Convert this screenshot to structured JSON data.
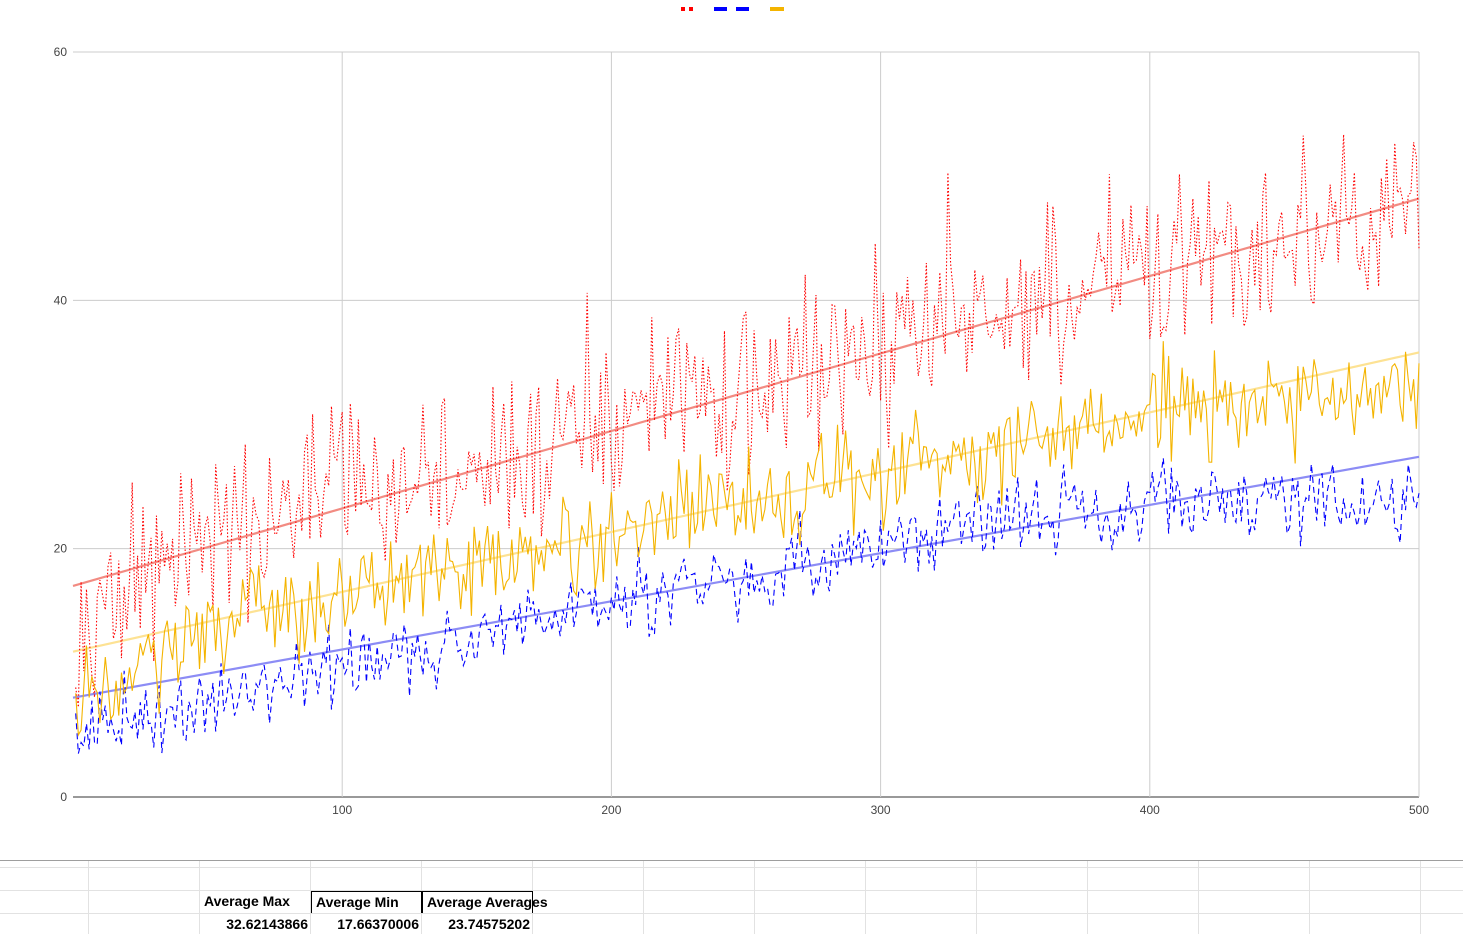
{
  "chart_data": {
    "type": "line",
    "legend_position": "top",
    "grid": true,
    "xlim": [
      0,
      500
    ],
    "ylim": [
      0,
      60
    ],
    "xticks": [
      "100",
      "200",
      "300",
      "400",
      "500"
    ],
    "yticks": [
      "0",
      "20",
      "40",
      "60"
    ],
    "n_points": 500,
    "series": [
      {
        "id": "max",
        "color": "#ff0000",
        "dash": "dotted",
        "approx_values": {
          "1": 15,
          "50": 20,
          "100": 24,
          "150": 27,
          "200": 30,
          "250": 33,
          "300": 36,
          "350": 39,
          "400": 42,
          "450": 45,
          "500": 48
        },
        "min_value": 7,
        "max_value": 56
      },
      {
        "id": "min",
        "color": "#0000ff",
        "dash": "dashed",
        "approx_values": {
          "1": 4.5,
          "50": 8,
          "100": 10,
          "150": 13,
          "200": 16,
          "250": 17.5,
          "300": 20,
          "350": 23,
          "400": 23.5,
          "450": 24,
          "500": 23
        },
        "min_value": 3.5,
        "max_value": 28.5
      },
      {
        "id": "avg",
        "color": "#f4b400",
        "dash": "solid",
        "approx_values": {
          "1": 7,
          "50": 13,
          "100": 16,
          "150": 18,
          "200": 21,
          "250": 24,
          "300": 26,
          "350": 29,
          "400": 31,
          "450": 32,
          "500": 33
        },
        "min_value": 5,
        "max_value": 38
      }
    ],
    "trendlines": [
      {
        "series": "max",
        "color": "#f28b82",
        "start": 17,
        "end": 48.2
      },
      {
        "series": "min",
        "color": "#8c8cf5",
        "start": 8,
        "end": 27.4
      },
      {
        "series": "avg",
        "color": "#fde293",
        "start": 11.7,
        "end": 35.8
      }
    ]
  },
  "sheet": {
    "headers": [
      "Average Max",
      "Average Min",
      "Average Averages"
    ],
    "values": [
      "32.62143866",
      "17.66370006",
      "23.74575202"
    ]
  }
}
